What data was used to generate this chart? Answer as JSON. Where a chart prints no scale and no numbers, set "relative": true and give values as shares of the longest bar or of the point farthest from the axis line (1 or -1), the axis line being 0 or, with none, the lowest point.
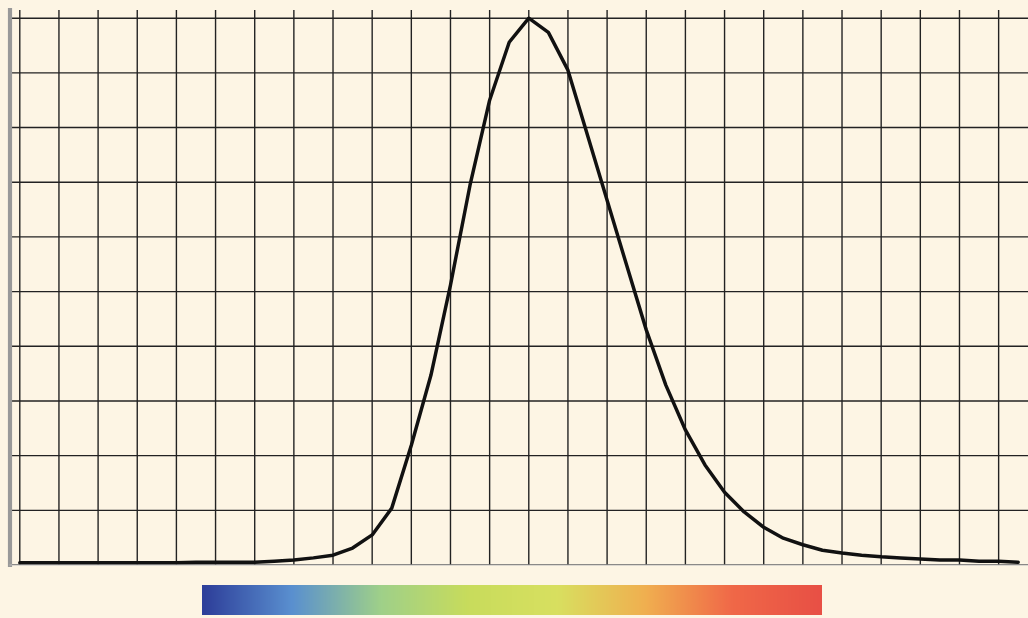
{
  "chart_data": {
    "type": "line",
    "relative": true,
    "grid": true,
    "tick_labels": false,
    "marker": "none",
    "line_style": "solid",
    "categories": [
      null,
      null,
      null,
      null,
      null,
      null,
      null,
      null,
      null,
      null,
      null,
      null,
      null,
      null,
      null,
      null,
      null,
      null,
      null,
      null,
      null,
      null,
      null,
      null,
      null,
      null,
      null,
      null,
      null,
      null,
      null,
      null,
      null,
      null,
      null,
      null,
      null,
      null,
      null,
      null,
      null,
      null,
      null,
      null,
      null,
      null,
      null,
      null,
      null,
      null,
      null,
      null
    ],
    "series": [
      {
        "color": "#111111",
        "values": [
          0.004,
          0.004,
          0.004,
          0.004,
          0.004,
          0.004,
          0.004,
          0.004,
          0.004,
          0.005,
          0.005,
          0.005,
          0.005,
          0.007,
          0.009,
          0.013,
          0.018,
          0.031,
          0.055,
          0.104,
          0.219,
          0.347,
          0.512,
          0.695,
          0.85,
          0.956,
          1,
          0.974,
          0.905,
          0.786,
          0.667,
          0.548,
          0.43,
          0.329,
          0.247,
          0.183,
          0.133,
          0.097,
          0.069,
          0.049,
          0.037,
          0.027,
          0.022,
          0.018,
          0.015,
          0.013,
          0.011,
          0.009,
          0.009,
          0.007,
          0.007,
          0.005
        ]
      }
    ]
  }
}
